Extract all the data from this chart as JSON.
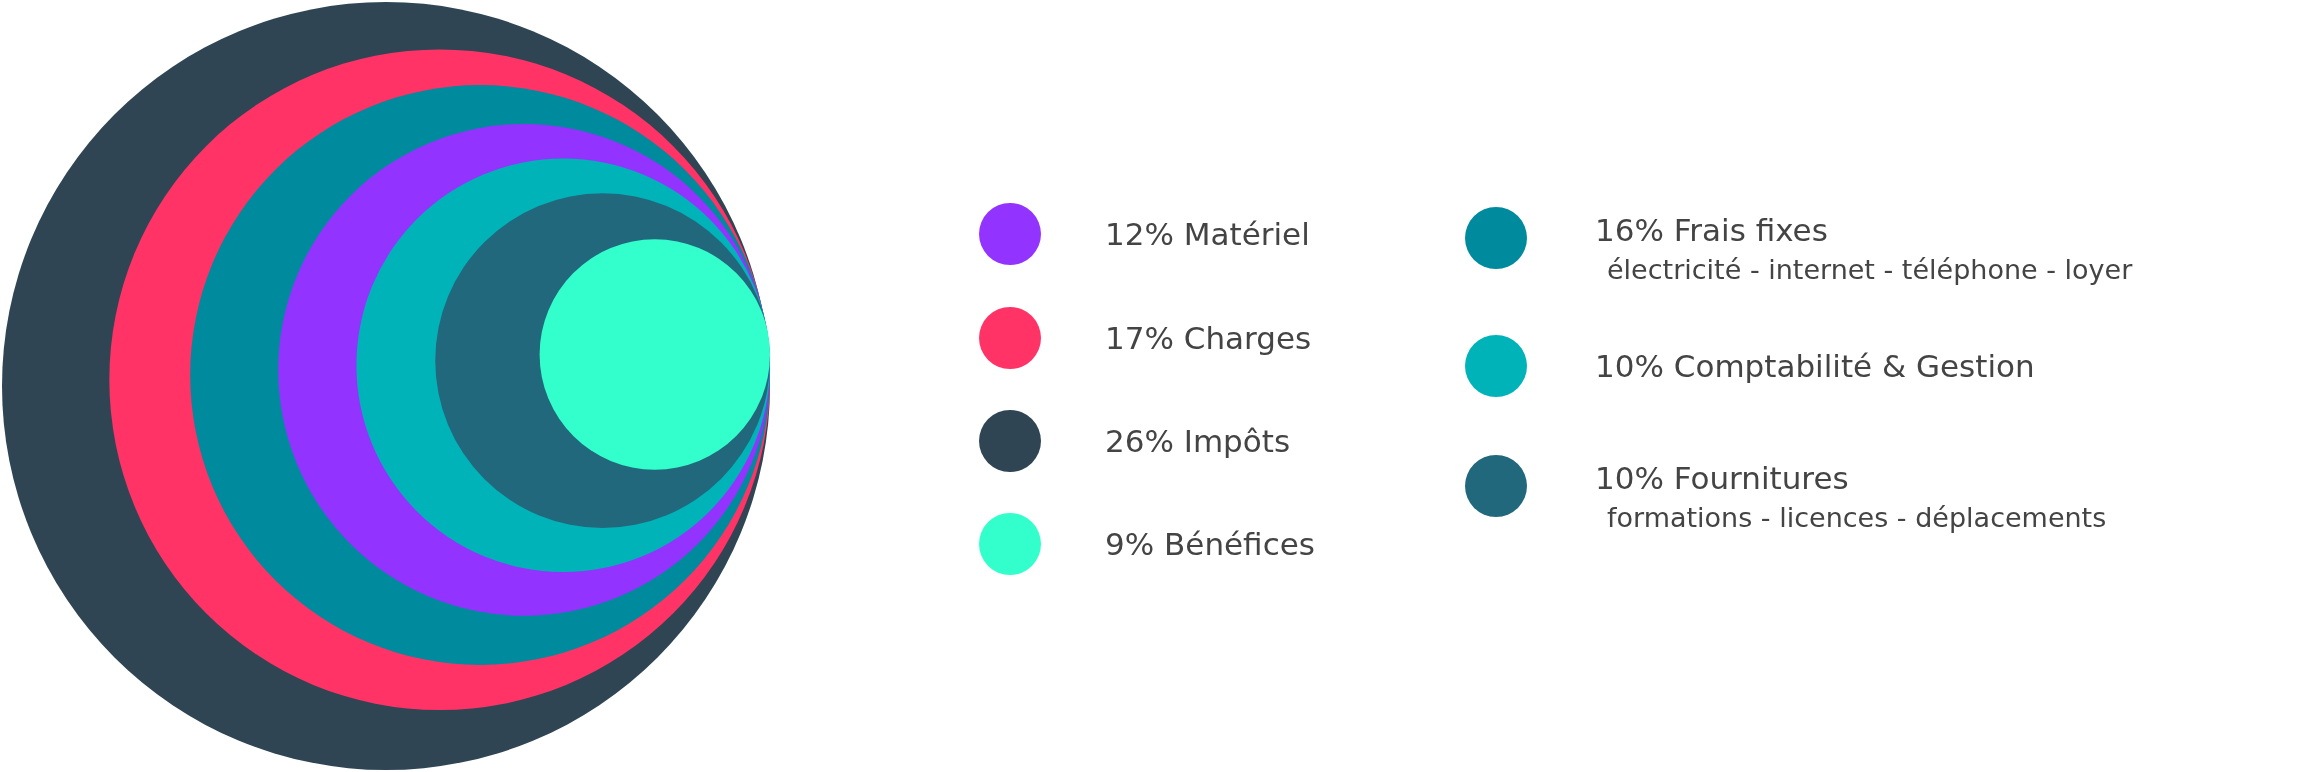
{
  "chart_data": {
    "type": "other",
    "categories": [
      "Impôts",
      "Charges",
      "Frais fixes",
      "Matériel",
      "Comptabilité & Gestion",
      "Fournitures",
      "Bénéfices"
    ],
    "values": [
      26,
      17,
      16,
      12,
      10,
      10,
      9
    ],
    "value_labels": [
      "26%",
      "17%",
      "16%",
      "12%",
      "10%",
      "10%",
      "9%"
    ],
    "colors": [
      "#2f4554",
      "#ff3366",
      "#008a9e",
      "#9333ff",
      "#00b3b8",
      "#22687d",
      "#33ffcc"
    ],
    "annotations": [
      "électricité - internet - téléphone - loyer",
      "formations - licences - déplacements"
    ]
  }
}
